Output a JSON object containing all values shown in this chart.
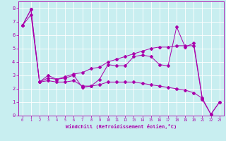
{
  "xlabel": "Windchill (Refroidissement éolien,°C)",
  "xlim": [
    -0.5,
    23.5
  ],
  "ylim": [
    0,
    8.5
  ],
  "xticks": [
    0,
    1,
    2,
    3,
    4,
    5,
    6,
    7,
    8,
    9,
    10,
    11,
    12,
    13,
    14,
    15,
    16,
    17,
    18,
    19,
    20,
    21,
    22,
    23
  ],
  "yticks": [
    0,
    1,
    2,
    3,
    4,
    5,
    6,
    7,
    8
  ],
  "bg_color": "#c8eef0",
  "line_color": "#aa00aa",
  "line1_x": [
    0,
    1,
    2,
    3,
    4,
    5,
    6,
    7,
    8,
    9,
    10,
    11,
    12,
    13,
    14,
    15,
    16,
    17,
    18,
    19,
    20,
    21,
    22,
    23
  ],
  "line1_y": [
    6.7,
    7.9,
    2.5,
    3.0,
    2.7,
    2.8,
    3.0,
    2.1,
    2.2,
    2.7,
    3.8,
    3.7,
    3.7,
    4.4,
    4.5,
    4.4,
    3.8,
    3.7,
    6.6,
    5.1,
    5.4,
    1.3,
    0.1,
    1.0
  ],
  "line2_x": [
    0,
    1,
    2,
    3,
    4,
    5,
    6,
    7,
    8,
    9,
    10,
    11,
    12,
    13,
    14,
    15,
    16,
    17,
    18,
    19,
    20,
    21,
    22,
    23
  ],
  "line2_y": [
    6.7,
    7.9,
    2.5,
    2.8,
    2.7,
    2.9,
    3.1,
    3.2,
    3.5,
    3.6,
    4.0,
    4.2,
    4.4,
    4.6,
    4.8,
    5.0,
    5.1,
    5.1,
    5.2,
    5.2,
    5.2,
    1.2,
    0.1,
    1.0
  ],
  "line3_x": [
    0,
    1,
    2,
    3,
    4,
    5,
    6,
    7,
    8,
    9,
    10,
    11,
    12,
    13,
    14,
    15,
    16,
    17,
    18,
    19,
    20,
    21
  ],
  "line3_y": [
    6.7,
    7.5,
    2.5,
    2.6,
    2.5,
    2.5,
    2.6,
    2.2,
    2.2,
    2.3,
    2.5,
    2.5,
    2.5,
    2.5,
    2.4,
    2.3,
    2.2,
    2.1,
    2.0,
    1.9,
    1.7,
    1.3
  ]
}
